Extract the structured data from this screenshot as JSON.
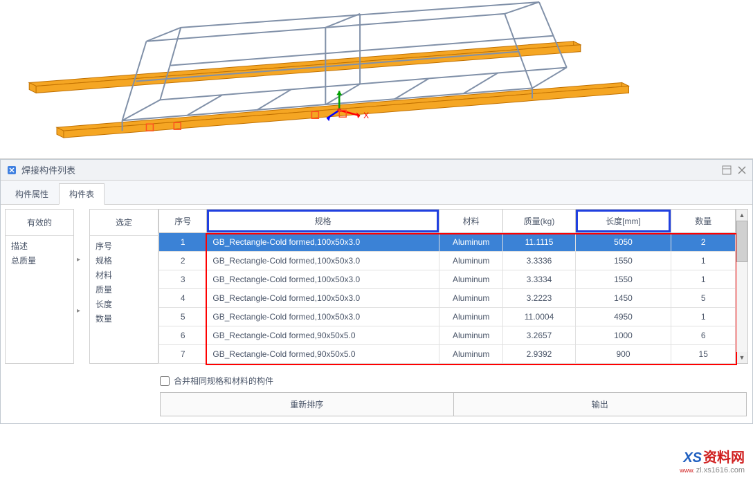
{
  "viewport": {
    "background_color": "#ffffff",
    "frame_color": "#a8b0c0",
    "highlight_color": "#f5a623",
    "axis_x_color": "#ff0000",
    "axis_y_color": "#00a000",
    "axis_z_color": "#0000ff",
    "axis_x_label": "X"
  },
  "panel": {
    "title": "焊接构件列表",
    "icon_name": "weldment-icon"
  },
  "tabs": [
    {
      "label": "构件属性",
      "active": false
    },
    {
      "label": "构件表",
      "active": true
    }
  ],
  "left": {
    "col1": {
      "header": "有效的",
      "items": [
        "描述",
        "总质量"
      ]
    },
    "col2": {
      "header": "选定",
      "items": [
        "序号",
        "规格",
        "材料",
        "质量",
        "长度",
        "数量"
      ]
    }
  },
  "table": {
    "columns": [
      {
        "key": "seq",
        "label": "序号",
        "class": "col-seq"
      },
      {
        "key": "spec",
        "label": "规格",
        "class": "col-spec",
        "blue": true
      },
      {
        "key": "mat",
        "label": "材料",
        "class": "col-mat"
      },
      {
        "key": "mass",
        "label": "质量(kg)",
        "class": "col-mass"
      },
      {
        "key": "len",
        "label": "长度[mm]",
        "class": "col-len",
        "blue": true
      },
      {
        "key": "qty",
        "label": "数量",
        "class": "col-qty"
      }
    ],
    "rows": [
      {
        "seq": 1,
        "spec": "GB_Rectangle-Cold formed,100x50x3.0",
        "mat": "Aluminum",
        "mass": "11.1115",
        "len": "5050",
        "qty": 2,
        "selected": true
      },
      {
        "seq": 2,
        "spec": "GB_Rectangle-Cold formed,100x50x3.0",
        "mat": "Aluminum",
        "mass": "3.3336",
        "len": "1550",
        "qty": 1
      },
      {
        "seq": 3,
        "spec": "GB_Rectangle-Cold formed,100x50x3.0",
        "mat": "Aluminum",
        "mass": "3.3334",
        "len": "1550",
        "qty": 1
      },
      {
        "seq": 4,
        "spec": "GB_Rectangle-Cold formed,100x50x3.0",
        "mat": "Aluminum",
        "mass": "3.2223",
        "len": "1450",
        "qty": 5
      },
      {
        "seq": 5,
        "spec": "GB_Rectangle-Cold formed,100x50x3.0",
        "mat": "Aluminum",
        "mass": "11.0004",
        "len": "4950",
        "qty": 1
      },
      {
        "seq": 6,
        "spec": "GB_Rectangle-Cold formed,90x50x5.0",
        "mat": "Aluminum",
        "mass": "3.2657",
        "len": "1000",
        "qty": 6
      },
      {
        "seq": 7,
        "spec": "GB_Rectangle-Cold formed,90x50x5.0",
        "mat": "Aluminum",
        "mass": "2.9392",
        "len": "900",
        "qty": 15
      }
    ],
    "selected_bg": "#3b82d6",
    "selected_fg": "#ffffff",
    "red_border_color": "#ff0000",
    "blue_border_color": "#2040e0"
  },
  "checkbox": {
    "label": "合并相同规格和材料的构件",
    "checked": false
  },
  "buttons": {
    "resort": "重新排序",
    "output": "输出"
  },
  "watermark": {
    "brand_prefix": "XS",
    "brand_suffix": "资料网",
    "url_prefix": "www.",
    "url": "zl.xs1616.com"
  }
}
